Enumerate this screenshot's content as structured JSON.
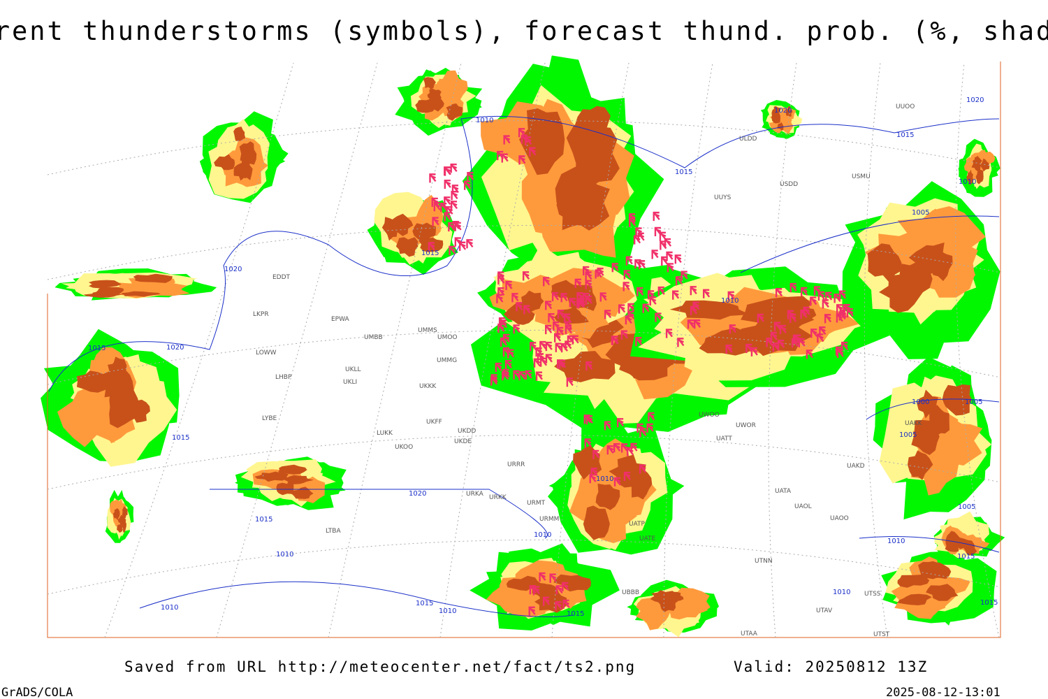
{
  "header": {
    "title": "Current thunderstorms (symbols), forecast thund. prob. (%, shaded)"
  },
  "footer": {
    "source": "Saved from URL http://meteocenter.net/fact/ts2.png",
    "valid": "Valid: 20250812 13Z",
    "software": "GrADS/COLA",
    "timestamp": "2025-08-12-13:01"
  },
  "stations": [
    "EDDT",
    "EPWA",
    "LKPR",
    "UMMG",
    "UMBB",
    "UMOO",
    "UMMS",
    "LOWW",
    "LHBP",
    "UKLL",
    "UKLI",
    "UKKK",
    "LYBE",
    "LUKK",
    "UKOO",
    "UKDE",
    "UKDD",
    "UKFF",
    "URRR",
    "URKA",
    "URKK",
    "URMT",
    "URMM",
    "UATE",
    "UATP",
    "UTNN",
    "UATA",
    "UAOL",
    "UAOO",
    "UAKD",
    "UAKK",
    "UATT",
    "UWOR",
    "UWOO",
    "ULDD",
    "USDD",
    "USMU",
    "UUYS",
    "UUOO",
    "LTBA",
    "UTAV",
    "UTSS",
    "UTST",
    "UTAA",
    "UBBB"
  ],
  "isobars": [
    1010,
    1020,
    1020,
    1015,
    1015,
    1010,
    1005,
    1015,
    1020,
    1010,
    1015,
    1020,
    1000,
    1005,
    1005,
    1015,
    1010,
    1020,
    1005,
    1015,
    1010,
    1010,
    1010,
    1015,
    1010,
    1015,
    1010,
    1015,
    1010,
    1015
  ]
}
